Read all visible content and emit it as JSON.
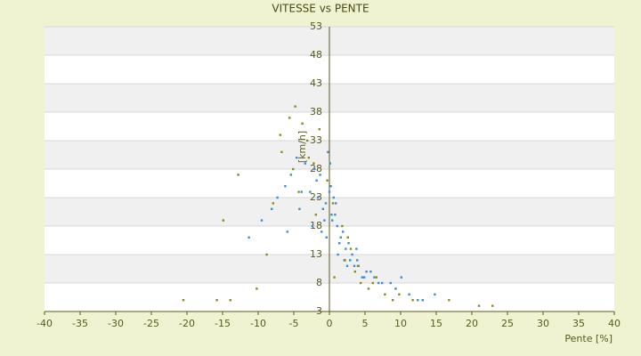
{
  "chart_data": {
    "type": "scatter",
    "title": "VITESSE vs PENTE",
    "x_label": "Pente [%]",
    "y_label": "[km/h]",
    "xlim": [
      -40,
      40
    ],
    "xticks": [
      -40,
      -35,
      -30,
      -25,
      -20,
      -15,
      -10,
      -5,
      0,
      5,
      10,
      15,
      20,
      25,
      30,
      35,
      40
    ],
    "ylim": [
      3,
      53
    ],
    "yticks": [
      3,
      8,
      13,
      18,
      23,
      28,
      33,
      38,
      43,
      48,
      53
    ],
    "grid": true,
    "series": [
      {
        "color": "#3a8fd8",
        "x": [
          -0.5,
          0.2,
          1.1,
          -1.3,
          0.8,
          2.3,
          -2.1,
          0.0,
          1.6,
          -0.9,
          3.2,
          4.1,
          -3.4,
          0.4,
          2.7,
          -1.8,
          5.2,
          6.3,
          -4.6,
          1.9,
          0.6,
          -0.2,
          2.1,
          3.8,
          -2.7,
          7.4,
          8.6,
          9.3,
          11.2,
          12.4,
          14.8,
          -6.2,
          -8.1,
          -9.5,
          -11.3,
          -5.4,
          0.3,
          1.4,
          -0.7,
          2.9,
          4.6,
          -1.1,
          0.9,
          3.5,
          -3.9,
          5.8,
          6.9,
          -7.3,
          10.1,
          13.1,
          -4.2,
          -2.4,
          1.2,
          0.1,
          -0.4,
          2.5,
          -1.6,
          3.9,
          4.9,
          -5.9
        ],
        "values": [
          22,
          25,
          18,
          27,
          20,
          14,
          28,
          24,
          16,
          21,
          13,
          11,
          29,
          19,
          15,
          26,
          10,
          9,
          30,
          17,
          23,
          31,
          12,
          14,
          24,
          8,
          8,
          7,
          6,
          5,
          6,
          25,
          21,
          19,
          16,
          27,
          20,
          15,
          19,
          12,
          9,
          17,
          22,
          11,
          24,
          10,
          8,
          23,
          9,
          5,
          21,
          18,
          13,
          29,
          16,
          11,
          23,
          12,
          9,
          17
        ]
      },
      {
        "color": "#8a8a1a",
        "x": [
          -4.8,
          -5.6,
          -3.1,
          -2.2,
          -6.7,
          -1.4,
          0.7,
          2.2,
          3.6,
          4.4,
          5.5,
          6.6,
          7.8,
          8.9,
          -20.5,
          -15.8,
          -13.9,
          -10.2,
          -7.9,
          -12.8,
          -14.9,
          -3.8,
          -2.9,
          -0.3,
          1.8,
          3.0,
          9.8,
          11.7,
          16.8,
          21.0,
          22.9,
          -4.3,
          -1.9,
          0.5,
          2.6,
          -6.9,
          -8.8,
          -5.1,
          4.0,
          6.1
        ],
        "values": [
          39,
          37,
          33,
          29,
          31,
          35,
          9,
          12,
          10,
          8,
          7,
          9,
          6,
          5,
          5,
          5,
          5,
          7,
          22,
          27,
          19,
          36,
          30,
          26,
          18,
          14,
          6,
          5,
          5,
          4,
          4,
          24,
          20,
          22,
          16,
          34,
          13,
          28,
          11,
          8
        ]
      }
    ]
  }
}
